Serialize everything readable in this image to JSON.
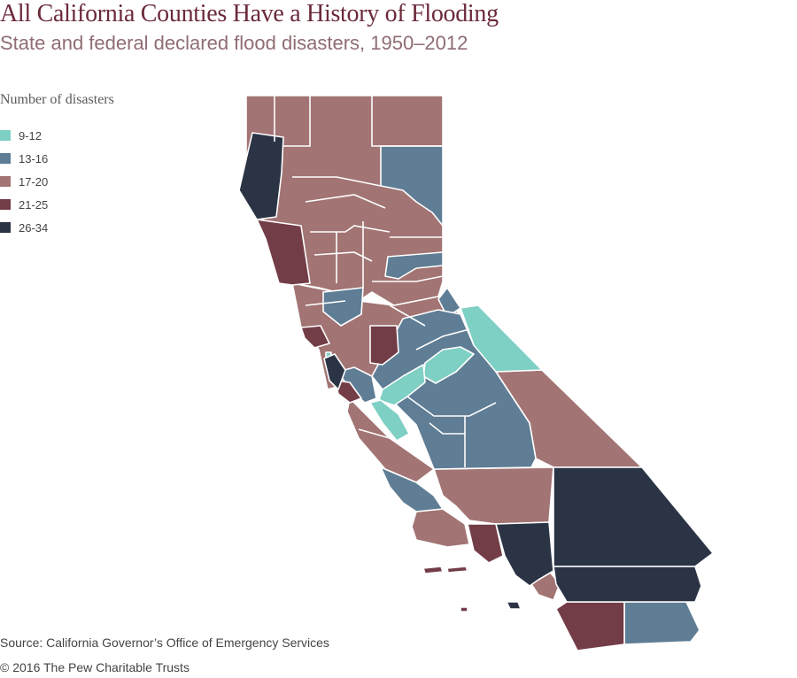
{
  "title": "All California Counties Have a History of Flooding",
  "subtitle": "State and federal declared flood disasters, 1950–2012",
  "legend": {
    "title": "Number of disasters",
    "items": [
      {
        "label": "9-12",
        "color": "#7ecfc4"
      },
      {
        "label": "13-16",
        "color": "#5f7d94"
      },
      {
        "label": "17-20",
        "color": "#a27474"
      },
      {
        "label": "21-25",
        "color": "#733d48"
      },
      {
        "label": "26-34",
        "color": "#2b3445"
      }
    ]
  },
  "colors": {
    "c9_12": "#7ecfc4",
    "c13_16": "#5f7d94",
    "c17_20": "#a27474",
    "c21_25": "#733d48",
    "c26_34": "#2b3445",
    "border": "#ffffff",
    "title": "#6b2a3a",
    "subtitle": "#8f6d72"
  },
  "source": "Source: California Governor’s Office of Emergency Services",
  "copyright": "© 2016 The Pew Charitable Trusts"
}
